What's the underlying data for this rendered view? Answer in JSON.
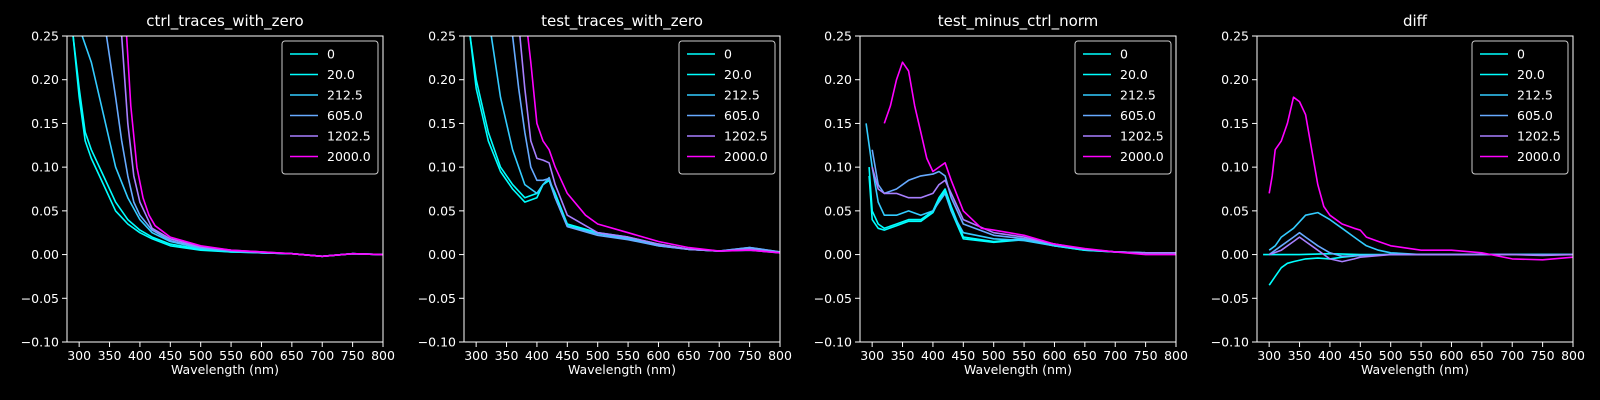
{
  "figure": {
    "background": "#000000",
    "foreground": "#ffffff"
  },
  "series_colors": [
    "#00ffff",
    "#00ffff",
    "#33ccff",
    "#66aaff",
    "#a87fff",
    "#ff00ff"
  ],
  "chart_data": [
    {
      "type": "line",
      "title": "ctrl_traces_with_zero",
      "xlabel": "Wavelength (nm)",
      "ylabel": "",
      "xlim": [
        280,
        800
      ],
      "ylim": [
        -0.1,
        0.25
      ],
      "xticks": [
        "300",
        "350",
        "400",
        "450",
        "500",
        "550",
        "600",
        "650",
        "700",
        "750",
        "800"
      ],
      "yticks": [
        "−0.10",
        "−0.05",
        "0.00",
        "0.05",
        "0.10",
        "0.15",
        "0.20",
        "0.25"
      ],
      "grid": false,
      "legend_position": "upper-right",
      "series": [
        {
          "name": "0",
          "x": [
            290,
            300,
            310,
            320,
            340,
            360,
            380,
            400,
            420,
            450,
            500,
            550,
            600,
            650,
            700,
            750,
            800
          ],
          "y": [
            0.25,
            0.18,
            0.13,
            0.11,
            0.08,
            0.05,
            0.035,
            0.025,
            0.018,
            0.01,
            0.005,
            0.003,
            0.002,
            0.001,
            -0.002,
            0.001,
            0.0
          ]
        },
        {
          "name": "20.0",
          "x": [
            290,
            300,
            310,
            320,
            340,
            360,
            380,
            400,
            420,
            450,
            500,
            550,
            600,
            650,
            700,
            750,
            800
          ],
          "y": [
            0.25,
            0.19,
            0.14,
            0.12,
            0.09,
            0.06,
            0.04,
            0.028,
            0.02,
            0.012,
            0.006,
            0.003,
            0.002,
            0.001,
            -0.002,
            0.001,
            0.0
          ]
        },
        {
          "name": "212.5",
          "x": [
            305,
            320,
            340,
            360,
            380,
            400,
            420,
            450,
            500,
            550,
            600,
            650,
            700,
            750,
            800
          ],
          "y": [
            0.25,
            0.22,
            0.16,
            0.1,
            0.065,
            0.04,
            0.025,
            0.015,
            0.007,
            0.004,
            0.002,
            0.001,
            -0.002,
            0.001,
            0.0
          ]
        },
        {
          "name": "605.0",
          "x": [
            345,
            360,
            370,
            380,
            390,
            400,
            420,
            450,
            500,
            550,
            600,
            650,
            700,
            750,
            800
          ],
          "y": [
            0.25,
            0.18,
            0.13,
            0.09,
            0.06,
            0.045,
            0.028,
            0.016,
            0.008,
            0.004,
            0.002,
            0.001,
            -0.002,
            0.001,
            0.0
          ]
        },
        {
          "name": "1202.5",
          "x": [
            370,
            380,
            390,
            400,
            410,
            420,
            450,
            500,
            550,
            600,
            650,
            700,
            750,
            800
          ],
          "y": [
            0.25,
            0.15,
            0.09,
            0.06,
            0.045,
            0.03,
            0.018,
            0.009,
            0.005,
            0.003,
            0.001,
            -0.002,
            0.001,
            0.0
          ]
        },
        {
          "name": "2000.0",
          "x": [
            378,
            385,
            395,
            405,
            415,
            425,
            450,
            500,
            550,
            600,
            650,
            700,
            750,
            800
          ],
          "y": [
            0.25,
            0.17,
            0.1,
            0.065,
            0.045,
            0.033,
            0.02,
            0.01,
            0.005,
            0.003,
            0.001,
            -0.002,
            0.001,
            0.0
          ]
        }
      ]
    },
    {
      "type": "line",
      "title": "test_traces_with_zero",
      "xlabel": "Wavelength (nm)",
      "ylabel": "",
      "xlim": [
        280,
        800
      ],
      "ylim": [
        -0.1,
        0.25
      ],
      "xticks": [
        "300",
        "350",
        "400",
        "450",
        "500",
        "550",
        "600",
        "650",
        "700",
        "750",
        "800"
      ],
      "yticks": [
        "−0.10",
        "−0.05",
        "0.00",
        "0.05",
        "0.10",
        "0.15",
        "0.20",
        "0.25"
      ],
      "grid": false,
      "legend_position": "upper-right",
      "series": [
        {
          "name": "0",
          "x": [
            290,
            300,
            320,
            340,
            360,
            380,
            400,
            410,
            420,
            430,
            450,
            500,
            550,
            600,
            650,
            700,
            750,
            800
          ],
          "y": [
            0.25,
            0.2,
            0.14,
            0.1,
            0.08,
            0.065,
            0.07,
            0.08,
            0.085,
            0.07,
            0.035,
            0.025,
            0.02,
            0.012,
            0.006,
            0.004,
            0.005,
            0.002
          ]
        },
        {
          "name": "20.0",
          "x": [
            290,
            300,
            320,
            340,
            360,
            380,
            400,
            410,
            420,
            430,
            450,
            500,
            550,
            600,
            650,
            700,
            750,
            800
          ],
          "y": [
            0.25,
            0.19,
            0.13,
            0.095,
            0.075,
            0.06,
            0.065,
            0.08,
            0.085,
            0.065,
            0.033,
            0.024,
            0.019,
            0.011,
            0.006,
            0.004,
            0.006,
            0.002
          ]
        },
        {
          "name": "212.5",
          "x": [
            325,
            340,
            360,
            380,
            400,
            410,
            420,
            430,
            450,
            500,
            550,
            600,
            650,
            700,
            750,
            800
          ],
          "y": [
            0.25,
            0.18,
            0.12,
            0.08,
            0.07,
            0.08,
            0.088,
            0.065,
            0.032,
            0.024,
            0.018,
            0.01,
            0.006,
            0.004,
            0.008,
            0.003
          ]
        },
        {
          "name": "605.0",
          "x": [
            360,
            370,
            380,
            390,
            400,
            410,
            420,
            430,
            450,
            500,
            550,
            600,
            650,
            700,
            750,
            800
          ],
          "y": [
            0.25,
            0.19,
            0.14,
            0.1,
            0.085,
            0.085,
            0.087,
            0.065,
            0.032,
            0.022,
            0.017,
            0.01,
            0.006,
            0.004,
            0.008,
            0.003
          ]
        },
        {
          "name": "1202.5",
          "x": [
            372,
            380,
            390,
            400,
            410,
            420,
            430,
            450,
            500,
            550,
            600,
            650,
            700,
            750,
            800
          ],
          "y": [
            0.25,
            0.19,
            0.13,
            0.11,
            0.108,
            0.105,
            0.08,
            0.045,
            0.025,
            0.02,
            0.012,
            0.006,
            0.004,
            0.006,
            0.002
          ]
        },
        {
          "name": "2000.0",
          "x": [
            385,
            390,
            400,
            410,
            420,
            430,
            450,
            480,
            500,
            550,
            600,
            650,
            700,
            750,
            800
          ],
          "y": [
            0.25,
            0.22,
            0.15,
            0.13,
            0.12,
            0.1,
            0.07,
            0.045,
            0.035,
            0.025,
            0.015,
            0.008,
            0.004,
            0.005,
            0.002
          ]
        }
      ]
    },
    {
      "type": "line",
      "title": "test_minus_ctrl_norm",
      "xlabel": "Wavelength (nm)",
      "ylabel": "",
      "xlim": [
        280,
        800
      ],
      "ylim": [
        -0.1,
        0.25
      ],
      "xticks": [
        "300",
        "350",
        "400",
        "450",
        "500",
        "550",
        "600",
        "650",
        "700",
        "750",
        "800"
      ],
      "yticks": [
        "−0.10",
        "−0.05",
        "0.00",
        "0.05",
        "0.10",
        "0.15",
        "0.20",
        "0.25"
      ],
      "grid": false,
      "legend_position": "upper-right",
      "series": [
        {
          "name": "0",
          "x": [
            295,
            300,
            310,
            320,
            340,
            360,
            380,
            400,
            410,
            420,
            430,
            450,
            500,
            550,
            600,
            650,
            700,
            750,
            800
          ],
          "y": [
            0.1,
            0.05,
            0.035,
            0.03,
            0.035,
            0.04,
            0.04,
            0.05,
            0.065,
            0.075,
            0.055,
            0.02,
            0.015,
            0.018,
            0.01,
            0.005,
            0.003,
            0.002,
            0.002
          ]
        },
        {
          "name": "20.0",
          "x": [
            295,
            300,
            310,
            320,
            340,
            360,
            380,
            400,
            410,
            420,
            430,
            450,
            500,
            550,
            600,
            650,
            700,
            750,
            800
          ],
          "y": [
            0.09,
            0.04,
            0.03,
            0.028,
            0.033,
            0.038,
            0.038,
            0.048,
            0.062,
            0.073,
            0.05,
            0.018,
            0.014,
            0.017,
            0.01,
            0.005,
            0.003,
            0.002,
            0.002
          ]
        },
        {
          "name": "212.5",
          "x": [
            290,
            300,
            310,
            320,
            340,
            360,
            380,
            400,
            410,
            420,
            430,
            450,
            500,
            550,
            600,
            650,
            700,
            750,
            800
          ],
          "y": [
            0.15,
            0.1,
            0.06,
            0.045,
            0.045,
            0.05,
            0.045,
            0.05,
            0.06,
            0.07,
            0.05,
            0.025,
            0.018,
            0.016,
            0.01,
            0.006,
            0.003,
            0.002,
            0.002
          ]
        },
        {
          "name": "605.0",
          "x": [
            300,
            310,
            320,
            340,
            360,
            380,
            400,
            410,
            420,
            430,
            450,
            500,
            550,
            600,
            650,
            700,
            750,
            800
          ],
          "y": [
            0.12,
            0.08,
            0.07,
            0.075,
            0.085,
            0.09,
            0.092,
            0.095,
            0.09,
            0.065,
            0.035,
            0.022,
            0.018,
            0.012,
            0.006,
            0.003,
            0.002,
            0.002
          ]
        },
        {
          "name": "1202.5",
          "x": [
            300,
            310,
            320,
            340,
            360,
            380,
            400,
            410,
            420,
            430,
            450,
            500,
            550,
            600,
            650,
            700,
            750,
            800
          ],
          "y": [
            0.1,
            0.075,
            0.07,
            0.07,
            0.065,
            0.065,
            0.07,
            0.08,
            0.085,
            0.07,
            0.04,
            0.025,
            0.02,
            0.012,
            0.006,
            0.003,
            0.002,
            0.002
          ]
        },
        {
          "name": "2000.0",
          "x": [
            320,
            330,
            340,
            350,
            360,
            370,
            380,
            390,
            400,
            410,
            420,
            430,
            450,
            480,
            500,
            550,
            600,
            650,
            700,
            750,
            800
          ],
          "y": [
            0.15,
            0.17,
            0.2,
            0.22,
            0.21,
            0.17,
            0.14,
            0.11,
            0.095,
            0.1,
            0.105,
            0.085,
            0.05,
            0.03,
            0.028,
            0.022,
            0.012,
            0.007,
            0.003,
            0.0,
            0.0
          ]
        }
      ]
    },
    {
      "type": "line",
      "title": "diff",
      "xlabel": "Wavelength (nm)",
      "ylabel": "",
      "xlim": [
        280,
        800
      ],
      "ylim": [
        -0.1,
        0.25
      ],
      "xticks": [
        "300",
        "350",
        "400",
        "450",
        "500",
        "550",
        "600",
        "650",
        "700",
        "750",
        "800"
      ],
      "yticks": [
        "−0.10",
        "−0.05",
        "0.00",
        "0.05",
        "0.10",
        "0.15",
        "0.20",
        "0.25"
      ],
      "grid": false,
      "legend_position": "upper-right",
      "series": [
        {
          "name": "0",
          "x": [
            290,
            300,
            350,
            400,
            450,
            500,
            550,
            600,
            650,
            700,
            750,
            800
          ],
          "y": [
            0.0,
            0.0,
            0.0,
            0.001,
            0.0,
            0.0,
            0.0,
            0.0,
            0.0,
            0.0,
            0.0,
            0.0
          ]
        },
        {
          "name": "20.0",
          "x": [
            300,
            310,
            320,
            330,
            340,
            360,
            380,
            400,
            420,
            450,
            500,
            550,
            600,
            650,
            700,
            750,
            800
          ],
          "y": [
            -0.035,
            -0.025,
            -0.015,
            -0.01,
            -0.008,
            -0.005,
            -0.004,
            -0.005,
            -0.003,
            -0.001,
            0.0,
            0.0,
            0.0,
            0.0,
            0.0,
            0.0,
            0.0
          ]
        },
        {
          "name": "212.5",
          "x": [
            300,
            310,
            320,
            340,
            360,
            380,
            400,
            420,
            440,
            450,
            460,
            480,
            500,
            550,
            600,
            650,
            700,
            750,
            800
          ],
          "y": [
            0.005,
            0.01,
            0.02,
            0.03,
            0.045,
            0.048,
            0.04,
            0.03,
            0.02,
            0.015,
            0.01,
            0.005,
            0.002,
            0.0,
            0.0,
            0.0,
            0.0,
            0.0,
            0.0
          ]
        },
        {
          "name": "605.0",
          "x": [
            300,
            320,
            340,
            350,
            360,
            380,
            400,
            420,
            450,
            500,
            550,
            600,
            650,
            700,
            750,
            800
          ],
          "y": [
            0.0,
            0.01,
            0.02,
            0.025,
            0.02,
            0.01,
            0.002,
            -0.002,
            -0.001,
            0.0,
            0.0,
            0.0,
            0.0,
            0.0,
            0.0,
            0.0
          ]
        },
        {
          "name": "1202.5",
          "x": [
            300,
            320,
            340,
            350,
            360,
            380,
            400,
            420,
            440,
            450,
            500,
            550,
            600,
            650,
            700,
            750,
            800
          ],
          "y": [
            0.0,
            0.005,
            0.015,
            0.02,
            0.015,
            0.005,
            -0.005,
            -0.008,
            -0.005,
            -0.003,
            0.0,
            0.0,
            0.0,
            0.0,
            0.0,
            -0.001,
            0.0
          ]
        },
        {
          "name": "2000.0",
          "x": [
            300,
            305,
            310,
            320,
            330,
            340,
            350,
            360,
            370,
            380,
            390,
            400,
            420,
            440,
            450,
            460,
            480,
            500,
            550,
            600,
            650,
            700,
            750,
            800
          ],
          "y": [
            0.07,
            0.09,
            0.12,
            0.13,
            0.15,
            0.18,
            0.175,
            0.16,
            0.12,
            0.08,
            0.055,
            0.045,
            0.035,
            0.03,
            0.028,
            0.02,
            0.015,
            0.01,
            0.005,
            0.005,
            0.002,
            -0.005,
            -0.006,
            -0.003
          ]
        }
      ]
    }
  ]
}
